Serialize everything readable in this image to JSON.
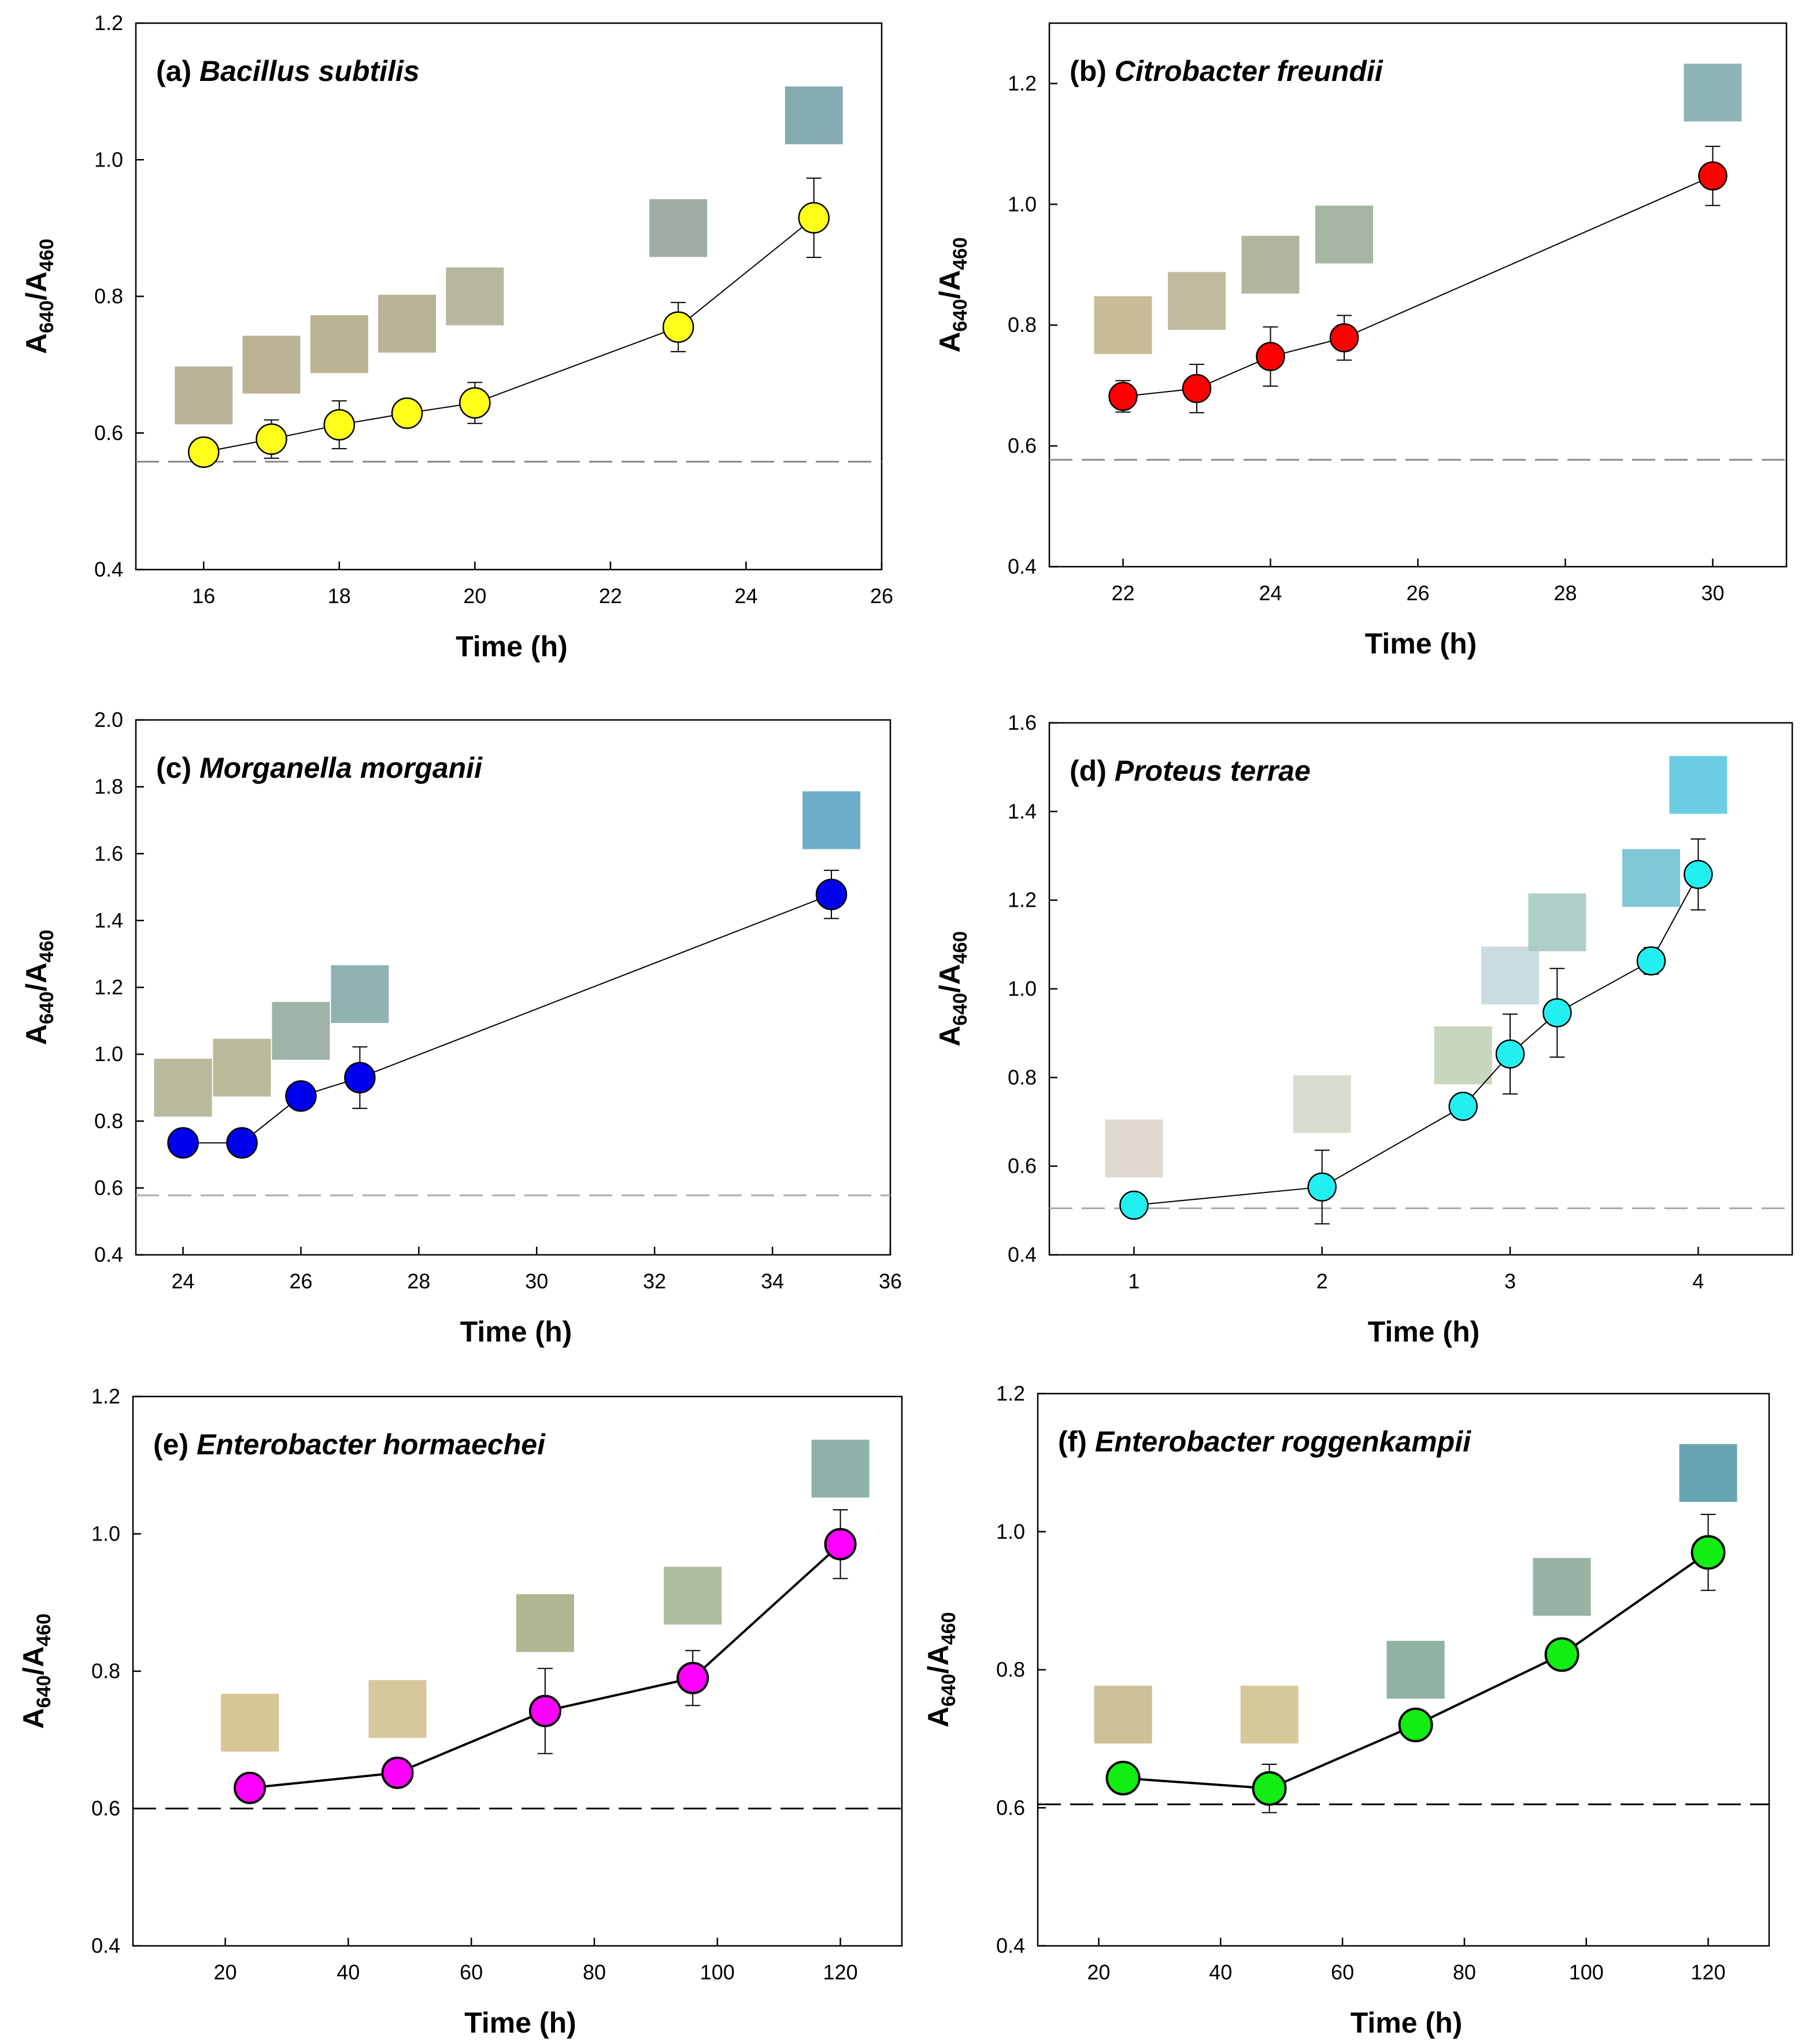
{
  "figure": {
    "panels": [
      {
        "id": "a",
        "label_prefix": "(a)",
        "organism": "Bacillus subtilis",
        "point_color": "#ffff1a",
        "baseline_color": "#888888",
        "swatch_colors": [
          "#b0ad8e",
          "#b5ad8a",
          "#b5ae8a",
          "#b1ae8c",
          "#b1b196",
          "#97a69a",
          "#7ba3a8"
        ]
      },
      {
        "id": "b",
        "label_prefix": "(b)",
        "organism": "Citrobacter freundii",
        "point_color": "#ff0000",
        "baseline_color": "#888888",
        "swatch_colors": [
          "#c2b68e",
          "#b9b496",
          "#a9b196",
          "#9eaf9c",
          "#84aeb0"
        ]
      },
      {
        "id": "c",
        "label_prefix": "(c)",
        "organism": "Morganella morganii",
        "point_color": "#0000ee",
        "baseline_color": "#aaaaaa",
        "swatch_colors": [
          "#b3b394",
          "#b5b593",
          "#97ada2",
          "#86acad",
          "#5fa6c6"
        ]
      },
      {
        "id": "d",
        "label_prefix": "(d)",
        "organism": "Proteus terrae",
        "point_color": "#22f0f0",
        "baseline_color": "#aaaaaa",
        "swatch_colors": [
          "#dcd6cc",
          "#d5dbcb",
          "#c4d2b8",
          "#c6d9dc",
          "#a9cbc3",
          "#74c2d0",
          "#60c9e0"
        ]
      },
      {
        "id": "e",
        "label_prefix": "(e)",
        "organism": "Enterobacter hormaechei",
        "point_color": "#ff00ff",
        "baseline_color": "#000000",
        "swatch_colors": [
          "#d2c08c",
          "#d2c394",
          "#a8b088",
          "#a7b795",
          "#86aba5"
        ]
      },
      {
        "id": "f",
        "label_prefix": "(f)",
        "organism": "Enterobacter roggenkampii",
        "point_color": "#11ee11",
        "baseline_color": "#000000",
        "swatch_colors": [
          "#cabb8e",
          "#d4c390",
          "#86ac9b",
          "#8fab9c",
          "#5a9dab"
        ]
      }
    ],
    "y_axis_title_main": "A",
    "y_axis_title_sub1": "640",
    "y_axis_title_sep": "/A",
    "y_axis_title_sub2": "460",
    "x_axis_title": "Time (h)"
  },
  "chart_data": [
    {
      "type": "line",
      "title": "(a) Bacillus subtilis",
      "xlabel": "Time (h)",
      "ylabel": "A640/A460",
      "xlim": [
        15,
        26
      ],
      "ylim": [
        0.4,
        1.2
      ],
      "xticks": [
        16,
        18,
        20,
        22,
        24,
        26
      ],
      "yticks": [
        0.4,
        0.6,
        0.8,
        1.0,
        1.2
      ],
      "x": [
        16,
        17,
        18,
        19,
        20,
        23,
        25
      ],
      "y": [
        0.572,
        0.591,
        0.612,
        0.629,
        0.644,
        0.755,
        0.915
      ],
      "error": [
        0.015,
        0.028,
        0.035,
        0.018,
        0.03,
        0.036,
        0.058
      ],
      "baseline": 0.558,
      "swatches_y": [
        0.655,
        0.7,
        0.73,
        0.76,
        0.8,
        0.9,
        1.065
      ]
    },
    {
      "type": "line",
      "title": "(b) Citrobacter freundii",
      "xlabel": "Time (h)",
      "ylabel": "A640/A460",
      "xlim": [
        21,
        31
      ],
      "ylim": [
        0.4,
        1.3
      ],
      "xticks": [
        22,
        24,
        26,
        28,
        30
      ],
      "yticks": [
        0.4,
        0.6,
        0.8,
        1.0,
        1.2
      ],
      "x": [
        22,
        23,
        24,
        25,
        30
      ],
      "y": [
        0.682,
        0.695,
        0.748,
        0.779,
        1.047
      ],
      "error": [
        0.026,
        0.04,
        0.049,
        0.037,
        0.049
      ],
      "baseline": 0.577,
      "swatches_y": [
        0.8,
        0.84,
        0.9,
        0.95,
        1.185
      ]
    },
    {
      "type": "line",
      "title": "(c) Morganella morganii",
      "xlabel": "Time (h)",
      "ylabel": "A640/A460",
      "xlim": [
        23.2,
        36
      ],
      "ylim": [
        0.4,
        2.0
      ],
      "xticks": [
        24,
        26,
        28,
        30,
        32,
        34,
        36
      ],
      "yticks": [
        0.4,
        0.6,
        0.8,
        1.0,
        1.2,
        1.4,
        1.6,
        1.8,
        2.0
      ],
      "x": [
        24,
        25,
        26,
        27,
        35
      ],
      "y": [
        0.735,
        0.735,
        0.875,
        0.93,
        1.478
      ],
      "error": [
        0.02,
        0.025,
        0.03,
        0.092,
        0.072
      ],
      "baseline": 0.578,
      "swatches_y": [
        0.9,
        0.96,
        1.07,
        1.18,
        1.7
      ]
    },
    {
      "type": "line",
      "title": "(d) Proteus terrae",
      "xlabel": "Time (h)",
      "ylabel": "A640/A460",
      "xlim": [
        0.55,
        4.5
      ],
      "ylim": [
        0.4,
        1.6
      ],
      "xticks": [
        1,
        2,
        3,
        4
      ],
      "yticks": [
        0.4,
        0.6,
        0.8,
        1.0,
        1.2,
        1.4,
        1.6
      ],
      "x": [
        1,
        2,
        2.75,
        3,
        3.25,
        3.75,
        4
      ],
      "y": [
        0.512,
        0.553,
        0.735,
        0.853,
        0.946,
        1.063,
        1.258
      ],
      "error": [
        0.012,
        0.083,
        0.025,
        0.09,
        0.1,
        0.03,
        0.08
      ],
      "baseline": 0.505,
      "swatches_y": [
        0.64,
        0.74,
        0.85,
        1.03,
        1.15,
        1.25,
        1.46
      ]
    },
    {
      "type": "line",
      "title": "(e) Enterobacter hormaechei",
      "xlabel": "Time (h)",
      "ylabel": "A640/A460",
      "xlim": [
        5,
        130
      ],
      "ylim": [
        0.4,
        1.2
      ],
      "xticks": [
        20,
        40,
        60,
        80,
        100,
        120
      ],
      "yticks": [
        0.4,
        0.6,
        0.8,
        1.0,
        1.2
      ],
      "x": [
        24,
        48,
        72,
        96,
        120
      ],
      "y": [
        0.63,
        0.652,
        0.742,
        0.79,
        0.985
      ],
      "error": [
        0.012,
        0.018,
        0.062,
        0.04,
        0.05
      ],
      "baseline": 0.6,
      "swatches_y": [
        0.725,
        0.745,
        0.87,
        0.91,
        1.095
      ]
    },
    {
      "type": "line",
      "title": "(f) Enterobacter roggenkampii",
      "xlabel": "Time (h)",
      "ylabel": "A640/A460",
      "xlim": [
        10,
        130
      ],
      "ylim": [
        0.4,
        1.2
      ],
      "xticks": [
        20,
        40,
        60,
        80,
        100,
        120
      ],
      "yticks": [
        0.4,
        0.6,
        0.8,
        1.0,
        1.2
      ],
      "x": [
        24,
        48,
        72,
        96,
        120
      ],
      "y": [
        0.643,
        0.628,
        0.72,
        0.822,
        0.97
      ],
      "error": [
        0.022,
        0.035,
        0.015,
        0.012,
        0.055
      ],
      "baseline": 0.605,
      "swatches_y": [
        0.735,
        0.735,
        0.8,
        0.92,
        1.085
      ]
    }
  ]
}
